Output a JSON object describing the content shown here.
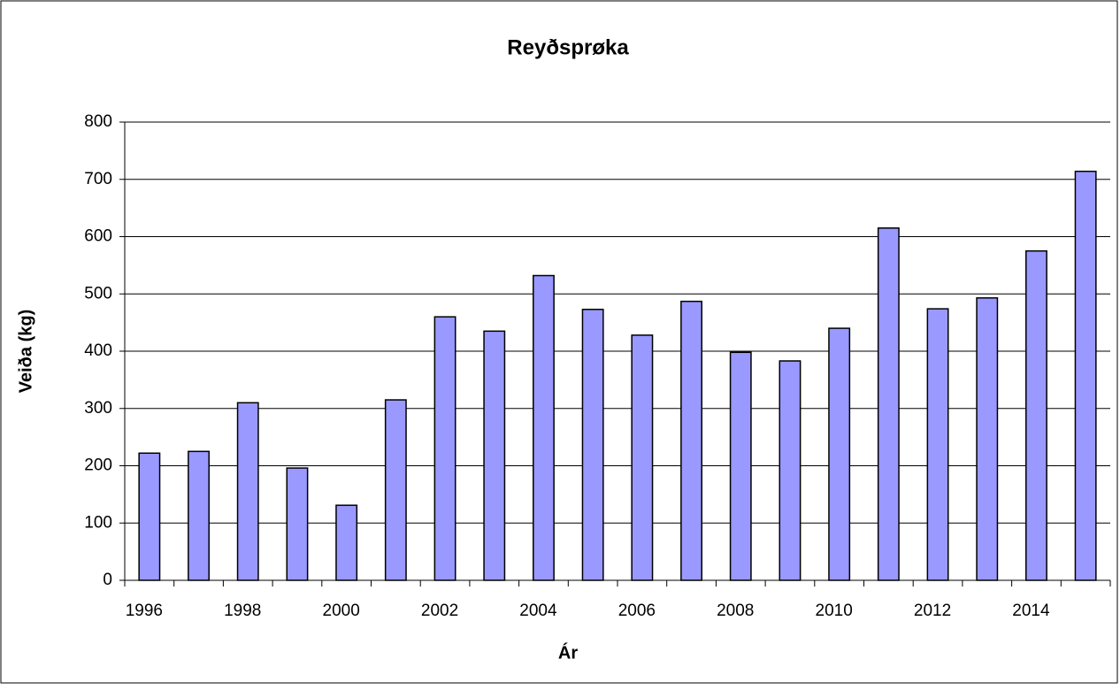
{
  "chart_data": {
    "type": "bar",
    "title": "Reyðsprøka",
    "x_label": "Ár",
    "y_label": "Veiða (kg)",
    "categories": [
      "1996",
      null,
      "1998",
      null,
      "2000",
      null,
      "2002",
      null,
      "2004",
      null,
      "2006",
      null,
      "2008",
      null,
      "2010",
      null,
      "2012",
      null,
      "2014",
      null
    ],
    "values": [
      222,
      225,
      310,
      196,
      131,
      315,
      460,
      435,
      532,
      473,
      428,
      487,
      398,
      383,
      440,
      615,
      474,
      493,
      575,
      714
    ],
    "color": "#9999ff",
    "ylim": [
      0,
      800
    ],
    "yticks": [
      0,
      100,
      200,
      300,
      400,
      500,
      600,
      700,
      800
    ],
    "grid": true
  }
}
